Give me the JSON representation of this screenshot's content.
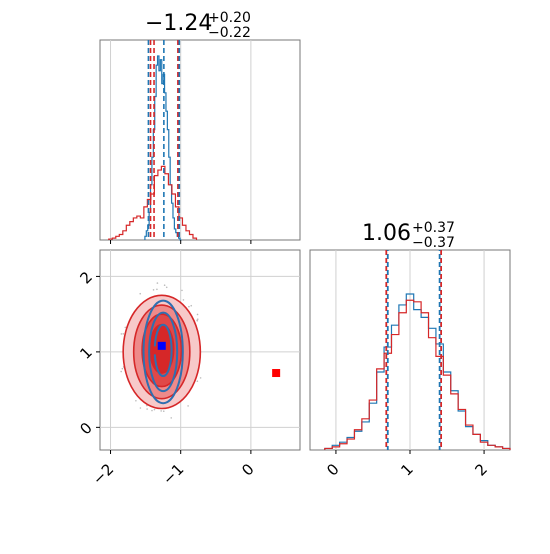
{
  "chart_data": [
    {
      "type": "histogram",
      "panel": "x-marginal",
      "title": {
        "base": "−1.24",
        "sup": "+0.20",
        "sub": "−0.22"
      },
      "xlim": [
        -2.15,
        0.7
      ],
      "quantiles": {
        "blue": [
          -1.46,
          -1.24,
          -1.02
        ],
        "red": [
          -1.43,
          -1.38,
          -1.04
        ]
      },
      "series": [
        {
          "color": "#1f77b4",
          "bins_x": [
            -1.5,
            -1.48,
            -1.46,
            -1.44,
            -1.42,
            -1.4,
            -1.38,
            -1.36,
            -1.34,
            -1.32,
            -1.3,
            -1.28,
            -1.26,
            -1.24,
            -1.22,
            -1.2,
            -1.18,
            -1.16,
            -1.14,
            -1.12,
            -1.1,
            -1.08,
            -1.06,
            -1.04,
            -1.02,
            -1.0
          ],
          "heights": [
            0.02,
            0.05,
            0.08,
            0.15,
            0.3,
            0.45,
            0.6,
            0.78,
            0.95,
            1.0,
            0.92,
            0.98,
            0.85,
            0.9,
            0.8,
            0.7,
            0.6,
            0.45,
            0.3,
            0.2,
            0.12,
            0.06,
            0.04,
            0.02,
            0.01,
            0.0
          ]
        },
        {
          "color": "#d62728",
          "bins_x": [
            -2.0,
            -1.95,
            -1.9,
            -1.85,
            -1.8,
            -1.75,
            -1.7,
            -1.65,
            -1.6,
            -1.55,
            -1.5,
            -1.45,
            -1.4,
            -1.35,
            -1.3,
            -1.25,
            -1.2,
            -1.15,
            -1.1,
            -1.05,
            -1.0,
            -0.95,
            -0.9,
            -0.85,
            -0.8
          ],
          "heights": [
            0.005,
            0.01,
            0.02,
            0.03,
            0.05,
            0.08,
            0.1,
            0.12,
            0.13,
            0.12,
            0.18,
            0.22,
            0.25,
            0.35,
            0.38,
            0.4,
            0.36,
            0.3,
            0.25,
            0.18,
            0.12,
            0.08,
            0.05,
            0.03,
            0.01
          ]
        }
      ],
      "xticks": [
        "−2",
        "−1",
        "0"
      ]
    },
    {
      "type": "histogram",
      "panel": "y-marginal",
      "title": {
        "base": "1.06",
        "sup": "+0.37",
        "sub": "−0.37"
      },
      "xlim": [
        -0.35,
        2.35
      ],
      "quantiles": {
        "blue": [
          0.7,
          1.4
        ],
        "red": [
          0.68,
          1.42
        ]
      },
      "series": [
        {
          "color": "#1f77b4",
          "bins_x": [
            -0.1,
            0.0,
            0.1,
            0.2,
            0.3,
            0.4,
            0.5,
            0.6,
            0.7,
            0.8,
            0.9,
            1.0,
            1.1,
            1.2,
            1.3,
            1.4,
            1.5,
            1.6,
            1.7,
            1.8,
            1.9,
            2.0,
            2.1,
            2.2,
            2.3
          ],
          "heights": [
            0.01,
            0.03,
            0.05,
            0.08,
            0.12,
            0.18,
            0.3,
            0.5,
            0.66,
            0.8,
            0.93,
            1.0,
            0.9,
            0.85,
            0.78,
            0.68,
            0.5,
            0.38,
            0.25,
            0.15,
            0.1,
            0.06,
            0.03,
            0.02,
            0.01
          ]
        },
        {
          "color": "#d62728",
          "bins_x": [
            -0.1,
            0.0,
            0.1,
            0.2,
            0.3,
            0.4,
            0.5,
            0.6,
            0.7,
            0.8,
            0.9,
            1.0,
            1.1,
            1.2,
            1.3,
            1.4,
            1.5,
            1.6,
            1.7,
            1.8,
            1.9,
            2.0,
            2.1,
            2.2,
            2.3
          ],
          "heights": [
            0.01,
            0.02,
            0.04,
            0.07,
            0.13,
            0.2,
            0.32,
            0.52,
            0.62,
            0.74,
            0.88,
            0.96,
            0.95,
            0.88,
            0.72,
            0.6,
            0.48,
            0.36,
            0.26,
            0.16,
            0.1,
            0.05,
            0.03,
            0.02,
            0.01
          ]
        }
      ],
      "xticks": [
        "0",
        "1",
        "2"
      ]
    },
    {
      "type": "contour",
      "panel": "joint",
      "xlim": [
        -2.15,
        0.7
      ],
      "ylim": [
        -0.3,
        2.35
      ],
      "xticks": [
        "−2",
        "−1",
        "0"
      ],
      "yticks": [
        "0",
        "1",
        "2"
      ],
      "red_levels": [
        {
          "cx": -1.27,
          "cy": 1.0,
          "rx": 0.55,
          "ry": 0.75,
          "fill": "#f7c9c9"
        },
        {
          "cx": -1.27,
          "cy": 1.0,
          "rx": 0.4,
          "ry": 0.62,
          "fill": "#ee8a8a"
        },
        {
          "cx": -1.27,
          "cy": 1.02,
          "rx": 0.28,
          "ry": 0.48,
          "fill": "#e04848"
        },
        {
          "cx": -1.27,
          "cy": 1.04,
          "rx": 0.17,
          "ry": 0.32,
          "fill": "#d62728"
        }
      ],
      "blue_levels": [
        {
          "cx": -1.25,
          "cy": 1.0,
          "rx": 0.28,
          "ry": 0.68
        },
        {
          "cx": -1.25,
          "cy": 1.0,
          "rx": 0.2,
          "ry": 0.52
        },
        {
          "cx": -1.25,
          "cy": 1.02,
          "rx": 0.12,
          "ry": 0.34
        }
      ],
      "markers": [
        {
          "color": "#d62728",
          "x": -1.35,
          "y": 1.02
        },
        {
          "color": "#0000ff",
          "x": -1.27,
          "y": 1.08
        },
        {
          "color": "#ff0000",
          "x": 0.36,
          "y": 0.72
        }
      ]
    }
  ]
}
